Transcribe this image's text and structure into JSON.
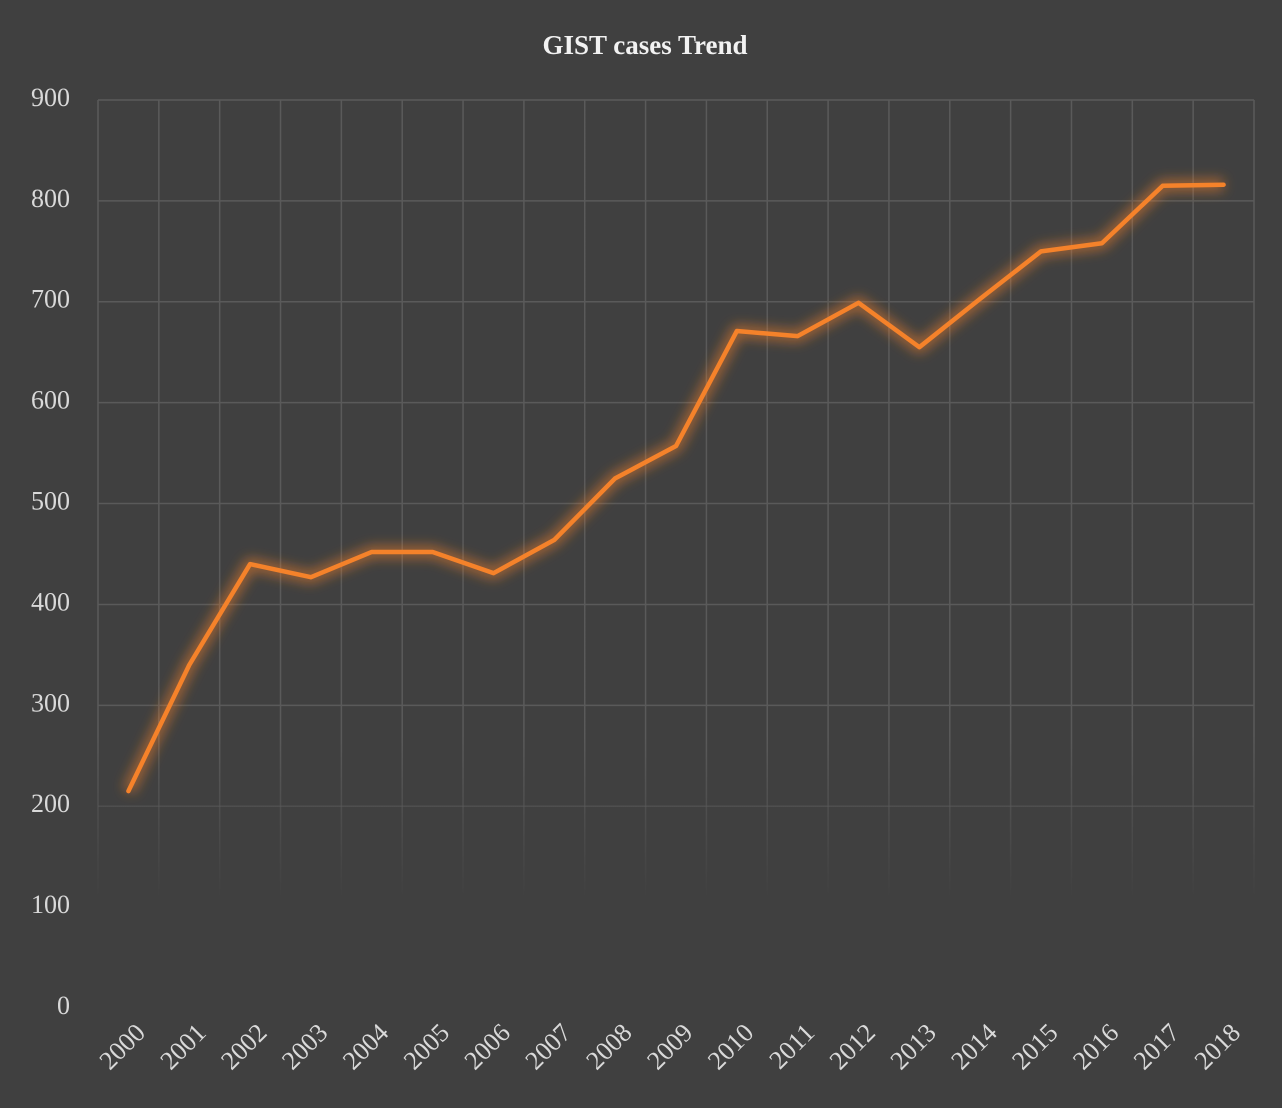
{
  "chart_data": {
    "type": "line",
    "title": "GIST cases Trend",
    "categories": [
      "2000",
      "2001",
      "2002",
      "2003",
      "2004",
      "2005",
      "2006",
      "2007",
      "2008",
      "2009",
      "2010",
      "2011",
      "2012",
      "2013",
      "2014",
      "2015",
      "2016",
      "2017",
      "2018"
    ],
    "series": [
      {
        "name": "GIST cases",
        "color": "#f5822a",
        "values": [
          215,
          340,
          440,
          427,
          452,
          452,
          431,
          464,
          525,
          557,
          671,
          666,
          699,
          655,
          703,
          750,
          758,
          815,
          816
        ]
      }
    ],
    "ylim": [
      0,
      900
    ],
    "yticks": [
      0,
      100,
      200,
      300,
      400,
      500,
      600,
      700,
      800,
      900
    ],
    "grid": true
  }
}
